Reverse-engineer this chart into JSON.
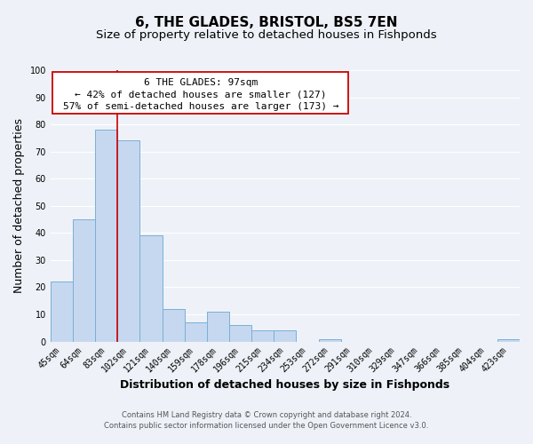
{
  "title": "6, THE GLADES, BRISTOL, BS5 7EN",
  "subtitle": "Size of property relative to detached houses in Fishponds",
  "xlabel": "Distribution of detached houses by size in Fishponds",
  "ylabel": "Number of detached properties",
  "bar_labels": [
    "45sqm",
    "64sqm",
    "83sqm",
    "102sqm",
    "121sqm",
    "140sqm",
    "159sqm",
    "178sqm",
    "196sqm",
    "215sqm",
    "234sqm",
    "253sqm",
    "272sqm",
    "291sqm",
    "310sqm",
    "329sqm",
    "347sqm",
    "366sqm",
    "385sqm",
    "404sqm",
    "423sqm"
  ],
  "bar_values": [
    22,
    45,
    78,
    74,
    39,
    12,
    7,
    11,
    6,
    4,
    4,
    0,
    1,
    0,
    0,
    0,
    0,
    0,
    0,
    0,
    1
  ],
  "bar_color": "#c5d8f0",
  "bar_edge_color": "#7bafd4",
  "background_color": "#eef2f8",
  "ylim": [
    0,
    100
  ],
  "grid_color": "#ffffff",
  "property_line_color": "#cc0000",
  "annotation_title": "6 THE GLADES: 97sqm",
  "annotation_line1": "← 42% of detached houses are smaller (127)",
  "annotation_line2": "57% of semi-detached houses are larger (173) →",
  "annotation_box_color": "#ffffff",
  "annotation_border_color": "#cc0000",
  "footer_line1": "Contains HM Land Registry data © Crown copyright and database right 2024.",
  "footer_line2": "Contains public sector information licensed under the Open Government Licence v3.0.",
  "title_fontsize": 11,
  "subtitle_fontsize": 9.5,
  "tick_fontsize": 7,
  "ylabel_fontsize": 9,
  "xlabel_fontsize": 9,
  "footer_fontsize": 6
}
